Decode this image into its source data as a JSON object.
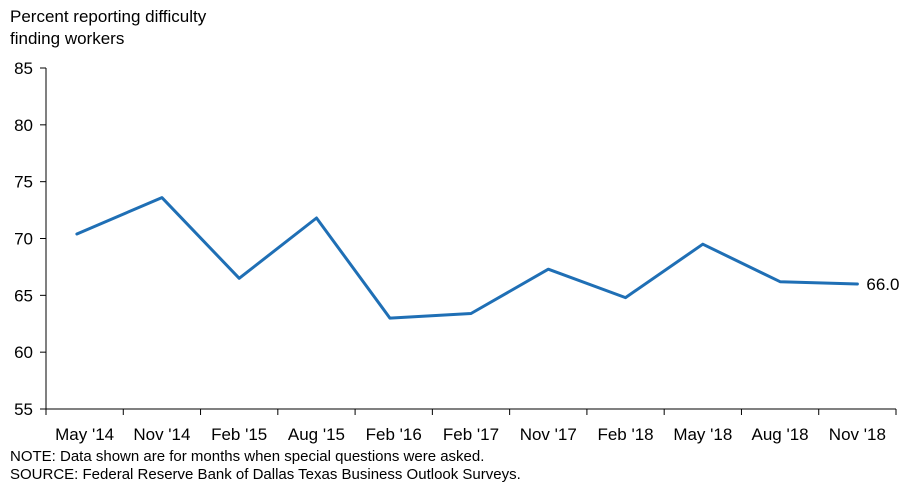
{
  "chart_data": {
    "type": "line",
    "ylabel_lines": [
      "Percent reporting difficulty",
      "finding workers"
    ],
    "categories": [
      "May '14",
      "Nov '14",
      "Feb '15",
      "Aug '15",
      "Feb '16",
      "Feb '17",
      "Nov '17",
      "Feb '18",
      "May '18",
      "Aug '18",
      "Nov '18"
    ],
    "x_index": [
      0.5,
      1.5,
      2.5,
      3.5,
      4.5,
      5.5,
      6.5,
      7.5,
      8.5,
      9.5,
      10.5
    ],
    "points_x": [
      0.4,
      1.5,
      2.5,
      3.5,
      4.45,
      5.5,
      6.5,
      7.5,
      8.5,
      9.5,
      10.5
    ],
    "series": [
      {
        "values": [
          70.4,
          73.6,
          66.5,
          71.8,
          63.0,
          63.4,
          67.3,
          64.8,
          69.5,
          66.2,
          66.0
        ],
        "color": "#1f6fb5"
      }
    ],
    "end_label": "66.0",
    "ylim": [
      55,
      85
    ],
    "yticks": [
      55,
      60,
      65,
      70,
      75,
      80,
      85
    ],
    "grid": false
  },
  "notes": {
    "note": "NOTE: Data shown are for months when special questions were asked.",
    "source": "SOURCE: Federal Reserve Bank of Dallas Texas Business Outlook Surveys."
  }
}
